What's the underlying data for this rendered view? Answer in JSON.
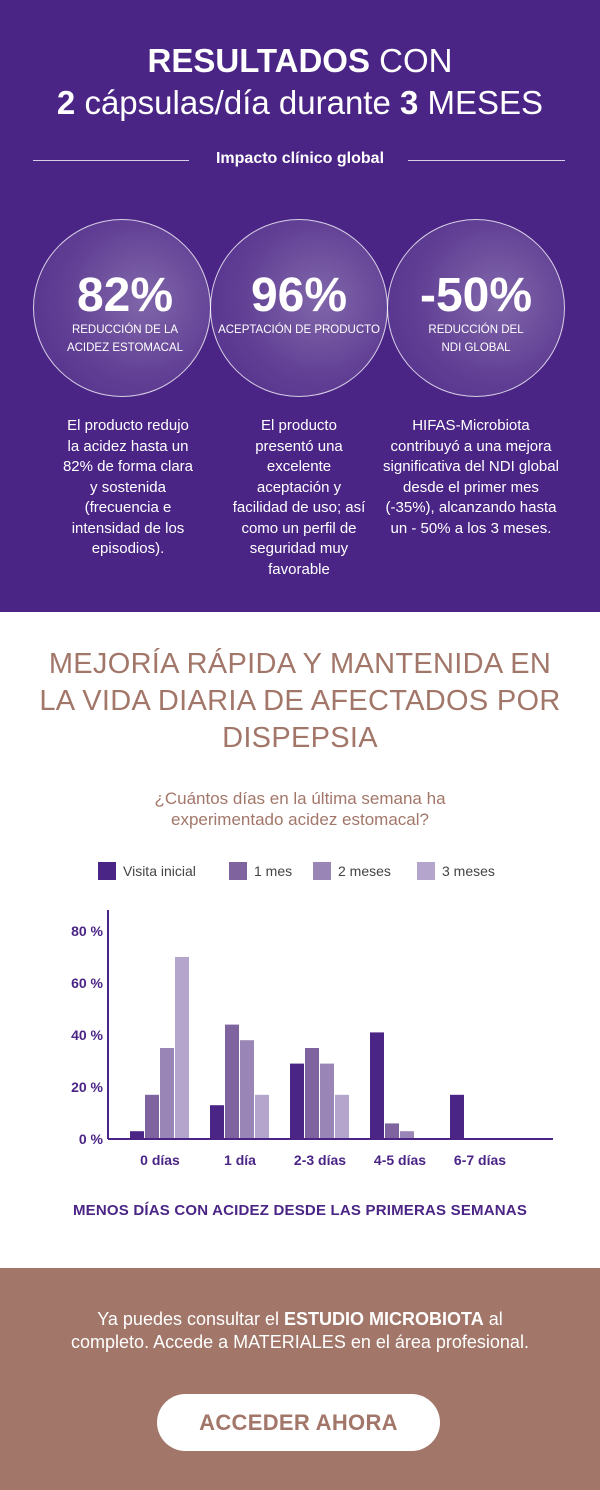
{
  "hero": {
    "title_line1_bold": "RESULTADOS",
    "title_line1_rest": "CON",
    "title_line2_num1": "2",
    "title_line2_mid": "cápsulas/día durante",
    "title_line2_num2": "3",
    "title_line2_rest": "MESES",
    "subtitle": "Impacto clínico global",
    "stats": [
      {
        "value": "82%",
        "label_line1": "REDUCCIÓN DE LA",
        "label_line2": "ACIDEZ ESTOMACAL",
        "description": "El producto redujo la acidez hasta un 82% de forma clara y sostenida (frecuencia e intensidad de los episodios)."
      },
      {
        "value": "96%",
        "label_line1": "ACEPTACIÓN DE PRODUCTO",
        "label_line2": "",
        "description": "El producto presentó una excelente aceptación y facilidad de uso; así como un perfil de seguridad muy favorable"
      },
      {
        "value": "-50%",
        "label_line1": "REDUCCIÓN DEL",
        "label_line2": "NDI GLOBAL",
        "description": "HIFAS-Microbiota contribuyó a una mejora significativa del NDI global desde el primer mes (-35%), alcanzando hasta un - 50% a los 3 meses."
      }
    ]
  },
  "section": {
    "title": "MEJORÍA RÁPIDA Y MANTENIDA EN LA VIDA DIARIA DE AFECTADOS POR DISPEPSIA",
    "question": "¿Cuántos días en la última semana ha experimentado acidez estomacal?",
    "conclusion": "MENOS DÍAS CON ACIDEZ DESDE LAS PRIMERAS SEMANAS"
  },
  "chart_data": {
    "type": "bar",
    "title": "¿Cuántos días en la última semana ha experimentado acidez estomacal?",
    "categories": [
      "0 días",
      "1 día",
      "2-3 días",
      "4-5 días",
      "6-7 días"
    ],
    "series": [
      {
        "name": "Visita inicial",
        "color": "#4b2586",
        "values": [
          3,
          13,
          29,
          41,
          17
        ]
      },
      {
        "name": "1 mes",
        "color": "#7e639f",
        "values": [
          17,
          44,
          35,
          6,
          0
        ]
      },
      {
        "name": "2 meses",
        "color": "#9a86b6",
        "values": [
          35,
          38,
          29,
          3,
          0
        ]
      },
      {
        "name": "3 meses",
        "color": "#b3a5cb",
        "values": [
          70,
          17,
          17,
          0,
          0
        ]
      }
    ],
    "yticks": [
      0,
      20,
      40,
      60,
      80
    ],
    "ytick_labels": [
      "0 %",
      "20 %",
      "40 %",
      "60 %",
      "80 %"
    ],
    "ylim": [
      0,
      85
    ],
    "xlabel": "",
    "ylabel": "",
    "legend": "top"
  },
  "footer": {
    "text_pre": "Ya puedes consultar el",
    "text_bold": "ESTUDIO MICROBIOTA",
    "text_post": "al completo. Accede a MATERIALES en el área profesional.",
    "cta_label": "ACCEDER AHORA"
  },
  "colors": {
    "purple": "#4b2586",
    "brown": "#a2776a"
  }
}
